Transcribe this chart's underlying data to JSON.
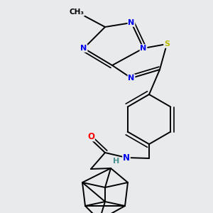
{
  "background_color": "#e8eaec",
  "atom_colors": {
    "N": "#0000ee",
    "S": "#bbbb00",
    "O": "#ff0000",
    "C": "#000000",
    "H": "#4a9090"
  },
  "bond_color": "#000000",
  "bond_width": 1.4
}
